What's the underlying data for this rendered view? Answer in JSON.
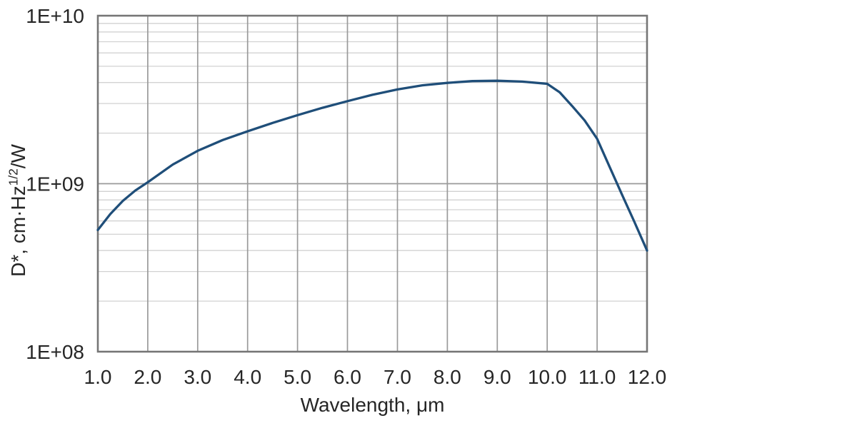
{
  "chart_data": {
    "type": "line",
    "xlabel": "Wavelength, μm",
    "ylabel": {
      "pre": "D*, cm·Hz",
      "sup": "1/2",
      "post": "/W"
    },
    "xlim": [
      1.0,
      12.0
    ],
    "ylim": [
      100000000.0,
      10000000000.0
    ],
    "y_scale": "log",
    "grid": {
      "x_major_step": 1.0,
      "y_minor": "log-decade-lines-2-to-9",
      "on": true
    },
    "legend": "none",
    "x_ticks": [
      "1.0",
      "2.0",
      "3.0",
      "4.0",
      "5.0",
      "6.0",
      "7.0",
      "8.0",
      "9.0",
      "10.0",
      "11.0",
      "12.0"
    ],
    "y_ticks": [
      "1E+08",
      "1E+09",
      "1E+10"
    ],
    "series": [
      {
        "color": "#1f4e79",
        "x": [
          1.0,
          1.25,
          1.5,
          1.75,
          2.0,
          2.5,
          3.0,
          3.5,
          4.0,
          4.5,
          5.0,
          5.5,
          6.0,
          6.5,
          7.0,
          7.5,
          8.0,
          8.5,
          9.0,
          9.5,
          10.0,
          10.25,
          10.5,
          10.75,
          11.0,
          11.25,
          11.5,
          11.75,
          12.0
        ],
        "y": [
          530000000.0,
          660000000.0,
          790000000.0,
          910000000.0,
          1020000000.0,
          1300000000.0,
          1570000000.0,
          1820000000.0,
          2050000000.0,
          2300000000.0,
          2560000000.0,
          2830000000.0,
          3100000000.0,
          3380000000.0,
          3640000000.0,
          3850000000.0,
          3980000000.0,
          4080000000.0,
          4100000000.0,
          4050000000.0,
          3930000000.0,
          3500000000.0,
          2900000000.0,
          2380000000.0,
          1850000000.0,
          1260000000.0,
          860000000.0,
          590000000.0,
          400000000.0
        ]
      }
    ]
  }
}
